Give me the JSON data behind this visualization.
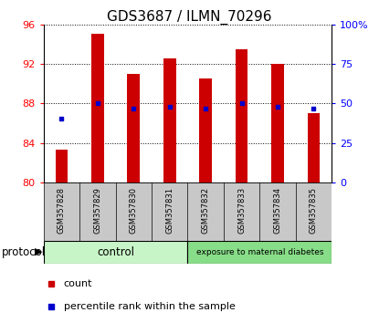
{
  "title": "GDS3687 / ILMN_70296",
  "samples": [
    "GSM357828",
    "GSM357829",
    "GSM357830",
    "GSM357831",
    "GSM357832",
    "GSM357833",
    "GSM357834",
    "GSM357835"
  ],
  "bar_values": [
    83.3,
    95.0,
    91.0,
    92.5,
    90.5,
    93.5,
    92.0,
    87.0
  ],
  "percentile_values": [
    86.5,
    88.0,
    87.5,
    87.7,
    87.5,
    88.0,
    87.7,
    87.5
  ],
  "bar_bottom": 80,
  "ylim_left": [
    80,
    96
  ],
  "ylim_right": [
    0,
    100
  ],
  "yticks_left": [
    80,
    84,
    88,
    92,
    96
  ],
  "yticks_right": [
    0,
    25,
    50,
    75,
    100
  ],
  "ytick_labels_right": [
    "0",
    "25",
    "50",
    "75",
    "100%"
  ],
  "bar_color": "#cc0000",
  "blue_color": "#0000cc",
  "control_color": "#c8f5c8",
  "diabetes_color": "#88dd88",
  "tick_area_color": "#c8c8c8",
  "protocol_label": "protocol",
  "control_label": "control",
  "diabetes_label": "exposure to maternal diabetes",
  "legend_count": "count",
  "legend_pct": "percentile rank within the sample",
  "bar_width": 0.35,
  "title_fontsize": 11,
  "tick_fontsize": 8,
  "sample_fontsize": 6,
  "legend_fontsize": 8,
  "proto_fontsize": 8.5
}
